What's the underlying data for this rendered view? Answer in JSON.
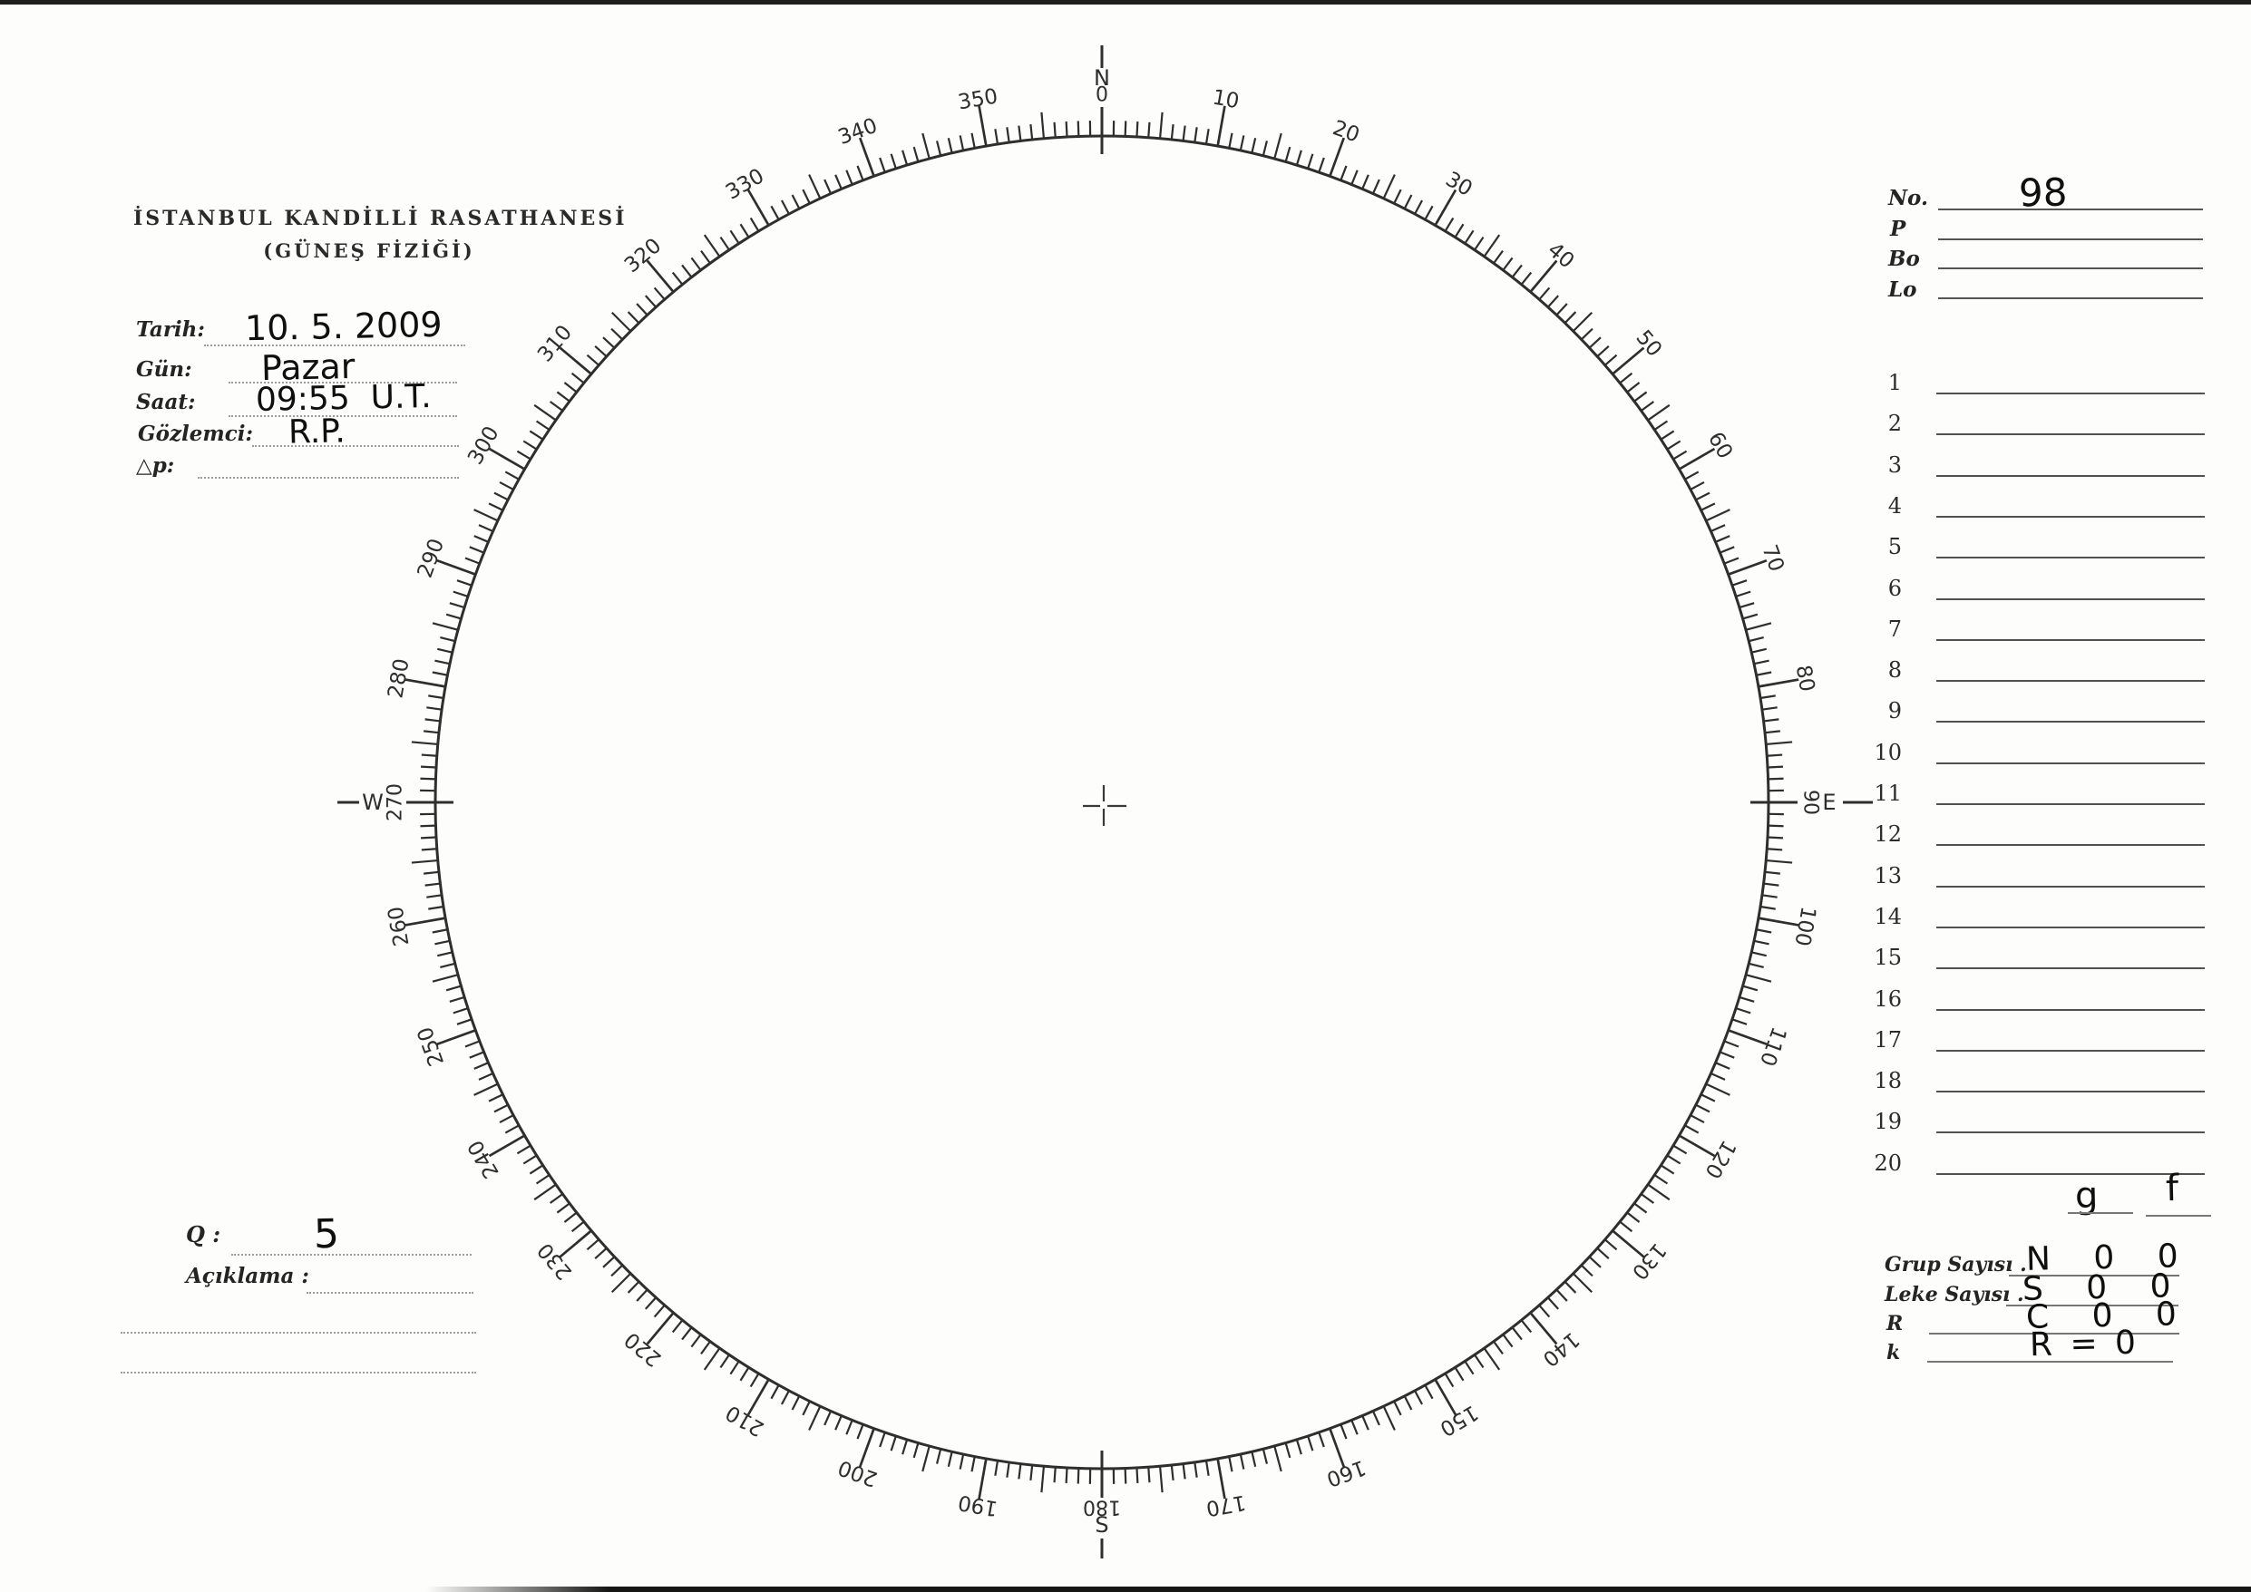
{
  "header": {
    "title_line1": "İSTANBUL KANDİLLİ RASATHANESİ",
    "title_line2": "(GÜNEŞ FİZİĞİ)"
  },
  "observation": {
    "fields": [
      {
        "label": "Tarih:",
        "value": "10. 5. 2009"
      },
      {
        "label": "Gün:",
        "value": "Pazar"
      },
      {
        "label": "Saat:",
        "value": "09:55  U.T."
      },
      {
        "label": "Gözlemci:",
        "value": "R.P."
      },
      {
        "label": "△p:",
        "value": ""
      }
    ]
  },
  "quality": {
    "label": "Q :",
    "value": "5"
  },
  "remarks": {
    "label": "Açıklama :",
    "value": ""
  },
  "registry": {
    "fields": [
      {
        "label": "No.",
        "value": "98"
      },
      {
        "label": "P",
        "value": ""
      },
      {
        "label": "Bo",
        "value": ""
      },
      {
        "label": "Lo",
        "value": ""
      }
    ]
  },
  "measure_rows": [
    "1",
    "2",
    "3",
    "4",
    "5",
    "6",
    "7",
    "8",
    "9",
    "10",
    "11",
    "12",
    "13",
    "14",
    "15",
    "16",
    "17",
    "18",
    "19",
    "20"
  ],
  "summary": {
    "column_headers": [
      "g",
      "f"
    ],
    "rows": [
      {
        "label": "Grup Sayısı .",
        "value": "N 0 0"
      },
      {
        "label": "Leke Sayısı .",
        "value": "S 0 0"
      },
      {
        "label": "R",
        "value": "C 0 0"
      },
      {
        "label": "k",
        "value": "R = 0"
      }
    ]
  },
  "protractor": {
    "cardinals": {
      "north": "N",
      "east": "E",
      "south": "S",
      "west": "W"
    },
    "axis_labels": {
      "top": "0",
      "right": "90",
      "bottom": "180",
      "left": "270"
    },
    "degree_labels": [
      "10",
      "20",
      "30",
      "40",
      "50",
      "60",
      "70",
      "80",
      "100",
      "110",
      "120",
      "130",
      "140",
      "150",
      "160",
      "170",
      "190",
      "200",
      "210",
      "220",
      "230",
      "240",
      "250",
      "260",
      "280",
      "290",
      "300",
      "310",
      "320",
      "330",
      "340",
      "350"
    ],
    "ink_color": "#2e2e2e"
  }
}
